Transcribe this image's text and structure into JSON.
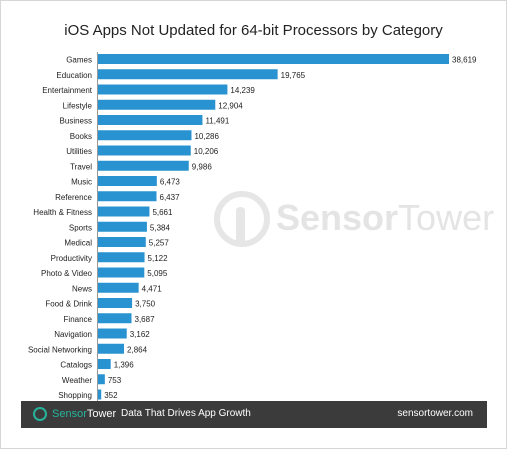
{
  "watermark": {
    "brand_part1": "Sensor",
    "brand_part2": "Tower"
  },
  "footer": {
    "brand_part1": "Sensor",
    "brand_part2": "Tower",
    "tagline": "Data That Drives App Growth",
    "url": "sensortower.com"
  },
  "colors": {
    "bar": "#2993d1",
    "footer_bg": "#3b3b3b",
    "accent": "#27b39b"
  },
  "chart_data": {
    "type": "bar",
    "orientation": "horizontal",
    "title": "iOS Apps Not Updated for 64-bit Processors by Category",
    "xlabel": "",
    "ylabel": "",
    "xlim": [
      0,
      38619
    ],
    "grid": false,
    "data_labels": true,
    "categories": [
      "Games",
      "Education",
      "Entertainment",
      "Lifestyle",
      "Business",
      "Books",
      "Utilities",
      "Travel",
      "Music",
      "Reference",
      "Health & Fitness",
      "Sports",
      "Medical",
      "Productivity",
      "Photo & Video",
      "News",
      "Food & Drink",
      "Finance",
      "Navigation",
      "Social Networking",
      "Catalogs",
      "Weather",
      "Shopping"
    ],
    "values": [
      38619,
      19765,
      14239,
      12904,
      11491,
      10286,
      10206,
      9986,
      6473,
      6437,
      5661,
      5384,
      5257,
      5122,
      5095,
      4471,
      3750,
      3687,
      3162,
      2864,
      1396,
      753,
      352
    ],
    "value_labels": [
      "38,619",
      "19,765",
      "14,239",
      "12,904",
      "11,491",
      "10,286",
      "10,206",
      "9,986",
      "6,473",
      "6,437",
      "5,661",
      "5,384",
      "5,257",
      "5,122",
      "5,095",
      "4,471",
      "3,750",
      "3,687",
      "3,162",
      "2,864",
      "1,396",
      "753",
      "352"
    ]
  }
}
